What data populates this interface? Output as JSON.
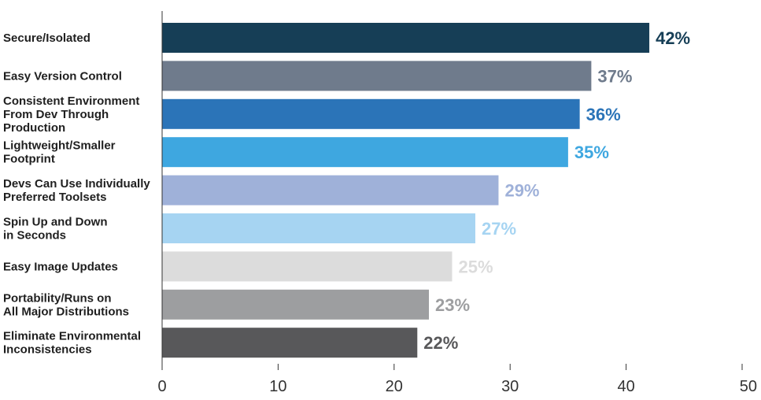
{
  "chart_data": {
    "type": "bar",
    "orientation": "horizontal",
    "categories": [
      [
        "Secure/Isolated"
      ],
      [
        "Easy Version Control"
      ],
      [
        "Consistent Environment",
        "From Dev Through",
        "Production"
      ],
      [
        "Lightweight/Smaller",
        "Footprint"
      ],
      [
        "Devs Can Use Individually",
        "Preferred Toolsets"
      ],
      [
        "Spin Up and Down",
        "in Seconds"
      ],
      [
        "Easy Image Updates"
      ],
      [
        "Portability/Runs on",
        "All Major Distributions"
      ],
      [
        "Eliminate Environmental",
        "Inconsistencies"
      ]
    ],
    "values": [
      42,
      37,
      36,
      35,
      29,
      27,
      25,
      23,
      22
    ],
    "value_labels": [
      "42%",
      "37%",
      "36%",
      "35%",
      "29%",
      "27%",
      "25%",
      "23%",
      "22%"
    ],
    "colors": [
      "#163e56",
      "#6f7b8c",
      "#2b74b8",
      "#3ea7e0",
      "#9fb1d9",
      "#a6d4f2",
      "#dcdcdc",
      "#9d9ea0",
      "#58585a"
    ],
    "xlim": [
      0,
      50
    ],
    "xticks": [
      "0",
      "10",
      "20",
      "30",
      "40",
      "50"
    ],
    "grid": false
  }
}
